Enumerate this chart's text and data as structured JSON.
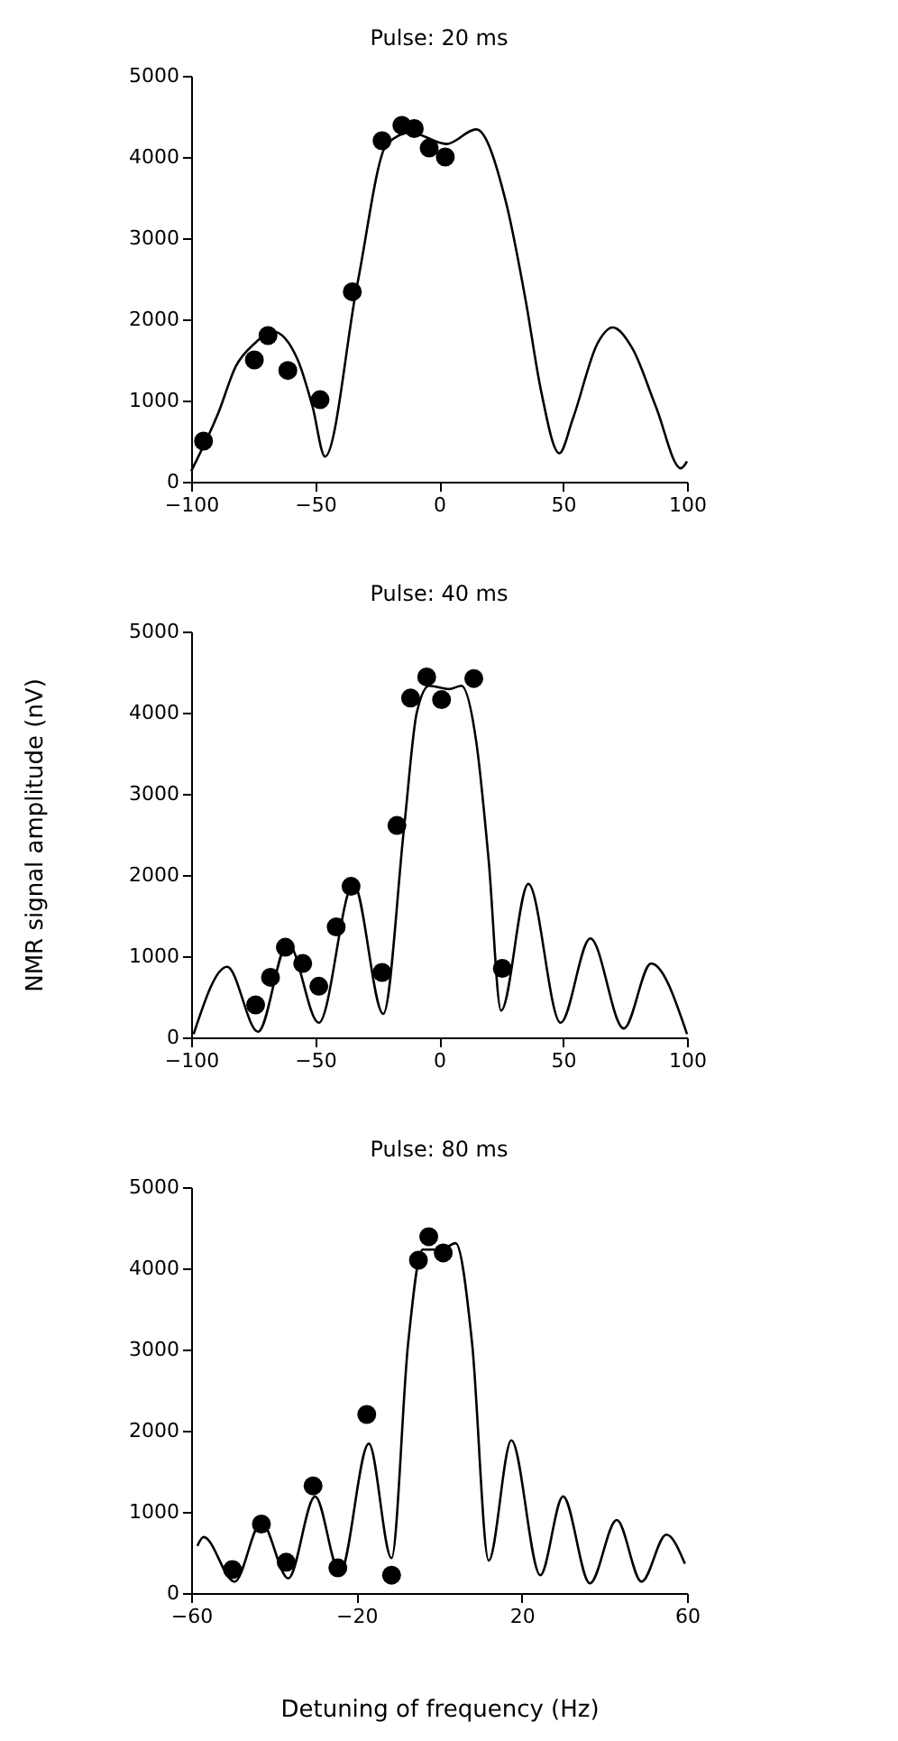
{
  "chart_data": [
    {
      "type": "scatter",
      "title": "Pulse: 20 ms",
      "xlim": [
        -100,
        100
      ],
      "ylim": [
        0,
        5000
      ],
      "xticks": [
        -100,
        -50,
        0,
        50,
        100
      ],
      "yticks": [
        0,
        1000,
        2000,
        3000,
        4000,
        5000
      ],
      "grid": false,
      "series": [
        {
          "type": "line",
          "marker": "none",
          "color": "#000000",
          "x": [
            -100,
            -89,
            -82,
            -74.5,
            -67,
            -57,
            -51,
            -46,
            -33,
            -21,
            -11.5,
            3,
            15,
            27,
            35,
            41,
            48.5,
            54,
            64,
            70,
            78,
            87.5,
            97.5,
            100
          ],
          "values": [
            130,
            850,
            1420,
            1700,
            1850,
            1500,
            920,
            310,
            2430,
            4160,
            4300,
            4160,
            4340,
            3440,
            2220,
            1140,
            350,
            780,
            1710,
            1900,
            1640,
            920,
            165,
            250
          ]
        },
        {
          "marker": "circle",
          "color": "#000000",
          "x": [
            -95,
            -74.5,
            -69,
            -61,
            -48,
            -35,
            -23,
            -15,
            -10,
            -4,
            2.5
          ],
          "values": [
            500,
            1500,
            1800,
            1370,
            1010,
            2340,
            4200,
            4390,
            4350,
            4110,
            4000
          ]
        }
      ]
    },
    {
      "type": "scatter",
      "title": "Pulse: 40 ms",
      "ylabel": "NMR signal amplitude (nV)",
      "xlim": [
        -100,
        100
      ],
      "ylim": [
        0,
        5000
      ],
      "xticks": [
        -100,
        -50,
        0,
        50,
        100
      ],
      "yticks": [
        0,
        1000,
        2000,
        3000,
        4000,
        5000
      ],
      "grid": false,
      "series": [
        {
          "type": "line",
          "marker": "none",
          "color": "#000000",
          "x": [
            -99,
            -85.5,
            -73,
            -61,
            -48.5,
            -34.5,
            -22.5,
            -14,
            -9,
            -4,
            4,
            9,
            15,
            20,
            25,
            36,
            49,
            61,
            74.5,
            85.5,
            100
          ],
          "values": [
            40,
            870,
            70,
            1160,
            180,
            1890,
            290,
            2620,
            4000,
            4330,
            4290,
            4330,
            3640,
            2180,
            330,
            1890,
            180,
            1220,
            110,
            910,
            40
          ]
        },
        {
          "marker": "circle",
          "color": "#000000",
          "x": [
            -74,
            -68,
            -62,
            -55,
            -48.5,
            -41.5,
            -35.5,
            -23,
            -17,
            -11.5,
            -5,
            1,
            14,
            25.5
          ],
          "values": [
            400,
            740,
            1110,
            910,
            630,
            1360,
            1860,
            800,
            2610,
            4180,
            4440,
            4160,
            4420,
            850
          ]
        }
      ]
    },
    {
      "type": "scatter",
      "title": "Pulse: 80 ms",
      "xlabel": "Detuning of frequency (Hz)",
      "xlim": [
        -60,
        60
      ],
      "ylim": [
        0,
        5000
      ],
      "xticks": [
        -60,
        -20,
        20,
        60
      ],
      "yticks": [
        0,
        1000,
        2000,
        3000,
        4000,
        5000
      ],
      "grid": false,
      "series": [
        {
          "type": "line",
          "marker": "none",
          "color": "#000000",
          "x": [
            -58.5,
            -57,
            -49.5,
            -43,
            -36.5,
            -30,
            -24,
            -17,
            -11.5,
            -7.5,
            -4,
            0.5,
            4,
            8,
            12,
            17.5,
            24.5,
            30,
            36.5,
            43,
            49,
            55,
            59.5
          ],
          "values": [
            580,
            690,
            140,
            870,
            180,
            1190,
            250,
            1840,
            430,
            3070,
            4230,
            4230,
            4310,
            3070,
            400,
            1880,
            220,
            1190,
            120,
            900,
            140,
            720,
            360
          ]
        },
        {
          "marker": "circle",
          "color": "#000000",
          "x": [
            -50,
            -43,
            -37,
            -30.5,
            -24.5,
            -17.5,
            -11.5,
            -5,
            -2.5,
            1
          ],
          "values": [
            290,
            850,
            380,
            1320,
            310,
            2200,
            220,
            4100,
            4390,
            4190
          ]
        }
      ]
    }
  ]
}
